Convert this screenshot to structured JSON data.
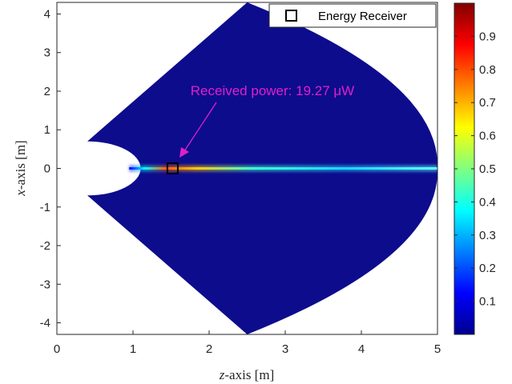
{
  "chart_data": {
    "type": "heatmap",
    "title": "",
    "xlabel_var": "z",
    "xlabel_rest": "-axis [m]",
    "ylabel_var": "x",
    "ylabel_rest": "-axis [m]",
    "xlim": [
      0,
      5
    ],
    "ylim": [
      -4.3,
      4.3
    ],
    "xticks": [
      "0",
      "1",
      "2",
      "3",
      "4",
      "5"
    ],
    "yticks": [
      "4",
      "3",
      "2",
      "1",
      "0",
      "-1",
      "-2",
      "-3",
      "-4"
    ],
    "grid": false,
    "legend": {
      "placement": "top-right",
      "entries": [
        "Energy Receiver"
      ]
    },
    "colorbar": {
      "ticks": [
        "0.9",
        "0.8",
        "0.7",
        "0.6",
        "0.5",
        "0.4",
        "0.3",
        "0.2",
        "0.1"
      ],
      "range": [
        0,
        1
      ],
      "colormap": "jet"
    },
    "receiver": {
      "z": 1.52,
      "x": 0
    },
    "annotation": {
      "text": "Received power: 19.27 μW",
      "arrow_to": {
        "z": 1.52,
        "x": 0
      }
    },
    "region": {
      "outline": [
        [
          0.4,
          0.7
        ],
        [
          2.5,
          4.3
        ],
        [
          5.0,
          0
        ],
        [
          2.5,
          -4.3
        ],
        [
          0.4,
          -0.7
        ]
      ],
      "inner_arc_center": [
        0.4,
        0
      ],
      "inner_arc_radius": 0.7,
      "background_value": 0.03
    },
    "beam": {
      "x_center": 0,
      "z_start": 0.95,
      "z_end": 5.0,
      "peak_value": 0.95,
      "peak_z": 1.52
    }
  },
  "colors": {
    "background_fill": "#0d0c8d",
    "annotation": "#e020c8",
    "receiver_marker": "#000000"
  }
}
